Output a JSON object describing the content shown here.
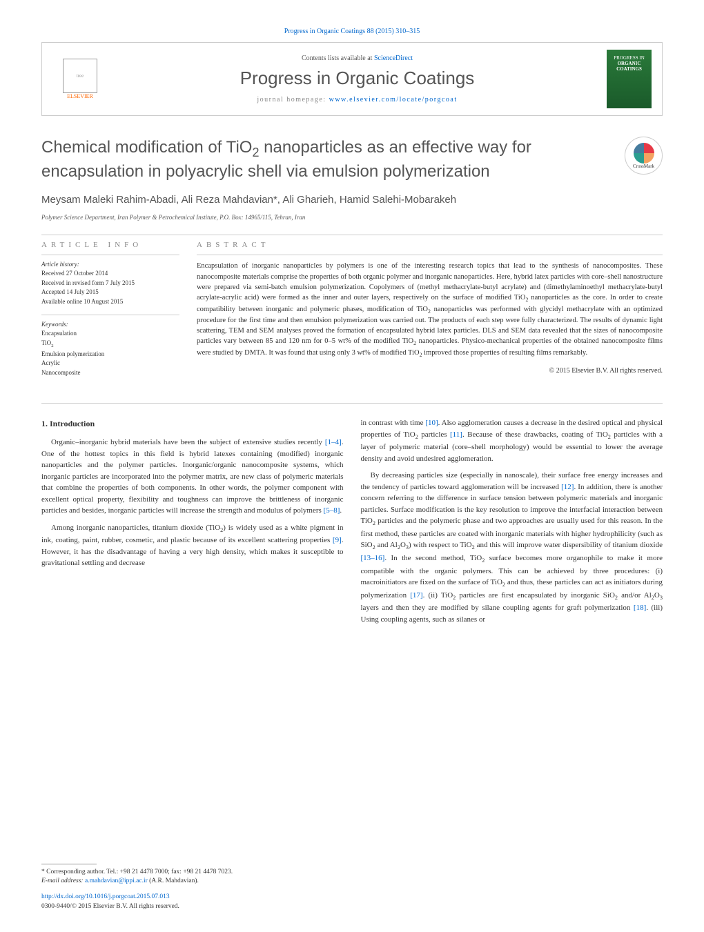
{
  "citation": "Progress in Organic Coatings 88 (2015) 310–315",
  "header": {
    "contents_prefix": "Contents lists available at ",
    "contents_link": "ScienceDirect",
    "journal_name": "Progress in Organic Coatings",
    "homepage_prefix": "journal homepage: ",
    "homepage_link": "www.elsevier.com/locate/porgcoat",
    "publisher": "ELSEVIER",
    "cover_text_top": "PROGRESS IN",
    "cover_text_main": "ORGANIC COATINGS"
  },
  "title": "Chemical modification of TiO₂ nanoparticles as an effective way for encapsulation in polyacrylic shell via emulsion polymerization",
  "crossmark": "CrossMark",
  "authors": "Meysam Maleki Rahim-Abadi, Ali Reza Mahdavian*, Ali Gharieh, Hamid Salehi-Mobarakeh",
  "affiliation": "Polymer Science Department, Iran Polymer & Petrochemical Institute, P.O. Box: 14965/115, Tehran, Iran",
  "info": {
    "heading": "article info",
    "history_title": "Article history:",
    "history": [
      "Received 27 October 2014",
      "Received in revised form 7 July 2015",
      "Accepted 14 July 2015",
      "Available online 10 August 2015"
    ],
    "keywords_title": "Keywords:",
    "keywords": [
      "Encapsulation",
      "TiO₂",
      "Emulsion polymerization",
      "Acrylic",
      "Nanocomposite"
    ]
  },
  "abstract": {
    "heading": "abstract",
    "text": "Encapsulation of inorganic nanoparticles by polymers is one of the interesting research topics that lead to the synthesis of nanocomposites. These nanocomposite materials comprise the properties of both organic polymer and inorganic nanoparticles. Here, hybrid latex particles with core–shell nanostructure were prepared via semi-batch emulsion polymerization. Copolymers of (methyl methacrylate-butyl acrylate) and (dimethylaminoethyl methacrylate-butyl acrylate-acrylic acid) were formed as the inner and outer layers, respectively on the surface of modified TiO₂ nanoparticles as the core. In order to create compatibility between inorganic and polymeric phases, modification of TiO₂ nanoparticles was performed with glycidyl methacrylate with an optimized procedure for the first time and then emulsion polymerization was carried out. The products of each step were fully characterized. The results of dynamic light scattering, TEM and SEM analyses proved the formation of encapsulated hybrid latex particles. DLS and SEM data revealed that the sizes of nanocomposite particles vary between 85 and 120 nm for 0–5 wt% of the modified TiO₂ nanoparticles. Physico-mechanical properties of the obtained nanocomposite films were studied by DMTA. It was found that using only 3 wt% of modified TiO₂ improved those properties of resulting films remarkably.",
    "copyright": "© 2015 Elsevier B.V. All rights reserved."
  },
  "body": {
    "section_num": "1.",
    "section_title": "Introduction",
    "col1_p1": "Organic–inorganic hybrid materials have been the subject of extensive studies recently [1–4]. One of the hottest topics in this field is hybrid latexes containing (modified) inorganic nanoparticles and the polymer particles. Inorganic/organic nanocomposite systems, which inorganic particles are incorporated into the polymer matrix, are new class of polymeric materials that combine the properties of both components. In other words, the polymer component with excellent optical property, flexibility and toughness can improve the brittleness of inorganic particles and besides, inorganic particles will increase the strength and modulus of polymers [5–8].",
    "col1_p2": "Among inorganic nanoparticles, titanium dioxide (TiO₂) is widely used as a white pigment in ink, coating, paint, rubber, cosmetic, and plastic because of its excellent scattering properties [9]. However, it has the disadvantage of having a very high density, which makes it susceptible to gravitational settling and decrease",
    "col2_p1": "in contrast with time [10]. Also agglomeration causes a decrease in the desired optical and physical properties of TiO₂ particles [11]. Because of these drawbacks, coating of TiO₂ particles with a layer of polymeric material (core–shell morphology) would be essential to lower the average density and avoid undesired agglomeration.",
    "col2_p2": "By decreasing particles size (especially in nanoscale), their surface free energy increases and the tendency of particles toward agglomeration will be increased [12]. In addition, there is another concern referring to the difference in surface tension between polymeric materials and inorganic particles. Surface modification is the key resolution to improve the interfacial interaction between TiO₂ particles and the polymeric phase and two approaches are usually used for this reason. In the first method, these particles are coated with inorganic materials with higher hydrophilicity (such as SiO₂ and Al₂O₃) with respect to TiO₂ and this will improve water dispersibility of titanium dioxide [13–16]. In the second method, TiO₂ surface becomes more organophile to make it more compatible with the organic polymers. This can be achieved by three procedures: (i) macroinitiators are fixed on the surface of TiO₂ and thus, these particles can act as initiators during polymerization [17]. (ii) TiO₂ particles are first encapsulated by inorganic SiO₂ and/or Al₂O₃ layers and then they are modified by silane coupling agents for graft polymerization [18]. (iii) Using coupling agents, such as silanes or",
    "refs": {
      "r1_4": "[1–4]",
      "r5_8": "[5–8]",
      "r9": "[9]",
      "r10": "[10]",
      "r11": "[11]",
      "r12": "[12]",
      "r13_16": "[13–16]",
      "r17": "[17]",
      "r18": "[18]"
    }
  },
  "footer": {
    "corr_label": "* Corresponding author. Tel.: +98 21 4478 7000; fax: +98 21 4478 7023.",
    "email_label": "E-mail address: ",
    "email": "a.mahdavian@ippi.ac.ir",
    "email_suffix": " (A.R. Mahdavian).",
    "doi": "http://dx.doi.org/10.1016/j.porgcoat.2015.07.013",
    "issn_line": "0300-9440/© 2015 Elsevier B.V. All rights reserved."
  },
  "colors": {
    "link": "#0066cc",
    "heading_gray": "#555555",
    "light_gray": "#888888",
    "border": "#cccccc",
    "elsevier_orange": "#ff6600"
  },
  "fonts": {
    "body_size": 11,
    "abstract_size": 10.5,
    "title_size": 24,
    "journal_size": 26,
    "authors_size": 15,
    "info_size": 9
  }
}
